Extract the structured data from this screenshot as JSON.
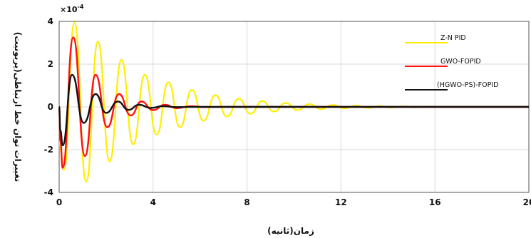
{
  "chart_data": {
    "type": "line",
    "title": "",
    "xlabel": "زمان(ثانیه)",
    "ylabel": "تغییرات توان خط ارتباطی(پریونیت)",
    "y_multiplier": "×10",
    "y_multiplier_exp": "-4",
    "xlim": [
      0,
      20
    ],
    "ylim": [
      -4,
      4
    ],
    "x_ticks": [
      "0",
      "4",
      "8",
      "12",
      "16",
      "20"
    ],
    "y_ticks": [
      "4",
      "2",
      "0",
      "-2",
      "-4"
    ],
    "grid": true,
    "legend_position": "top-right",
    "series": [
      {
        "name": "Z-N PID",
        "color": "#ffee00",
        "x": [
          0,
          0.05,
          0.2,
          0.65,
          1.15,
          1.65,
          2.15,
          2.65,
          3.15,
          3.65,
          4.15,
          4.65,
          5.15,
          5.65,
          6.15,
          6.65,
          7.15,
          7.65,
          8.15,
          8.65,
          9.15,
          9.65,
          10.15,
          10.65,
          11.15,
          11.65,
          12.15,
          12.65,
          13.15,
          13.65,
          14.15,
          14.65,
          15.15,
          15.65,
          16.15,
          20
        ],
        "y": [
          0,
          -2.0,
          -2.95,
          3.95,
          -3.5,
          3.05,
          -2.55,
          2.2,
          -1.75,
          1.5,
          -1.3,
          1.15,
          -0.95,
          0.8,
          -0.65,
          0.55,
          -0.45,
          0.38,
          -0.32,
          0.27,
          -0.22,
          0.18,
          -0.15,
          0.13,
          -0.1,
          0.09,
          -0.07,
          0.06,
          -0.05,
          0.04,
          -0.03,
          0.025,
          -0.02,
          0.015,
          0,
          0
        ]
      },
      {
        "name": "GWO-FOPID",
        "color": "#ff1010",
        "x": [
          0,
          0.05,
          0.15,
          0.6,
          1.1,
          1.55,
          2.05,
          2.55,
          3.05,
          3.5,
          4.0,
          4.5,
          5.0,
          5.6,
          6.2,
          7.0,
          20
        ],
        "y": [
          0,
          -1.6,
          -2.85,
          3.25,
          -2.3,
          1.5,
          -0.95,
          0.6,
          -0.4,
          0.25,
          -0.15,
          0.1,
          -0.06,
          0.03,
          -0.01,
          0,
          0
        ]
      },
      {
        "name": "(HGWO-PS)-FOPID",
        "color": "#111111",
        "x": [
          0,
          0.05,
          0.15,
          0.55,
          1.05,
          1.55,
          2.0,
          2.5,
          2.95,
          3.4,
          3.9,
          4.4,
          5.0,
          5.8,
          20
        ],
        "y": [
          0,
          -1.1,
          -1.8,
          1.5,
          -0.75,
          0.6,
          -0.28,
          0.25,
          -0.14,
          0.1,
          -0.05,
          0.03,
          -0.01,
          0,
          0
        ]
      }
    ]
  }
}
